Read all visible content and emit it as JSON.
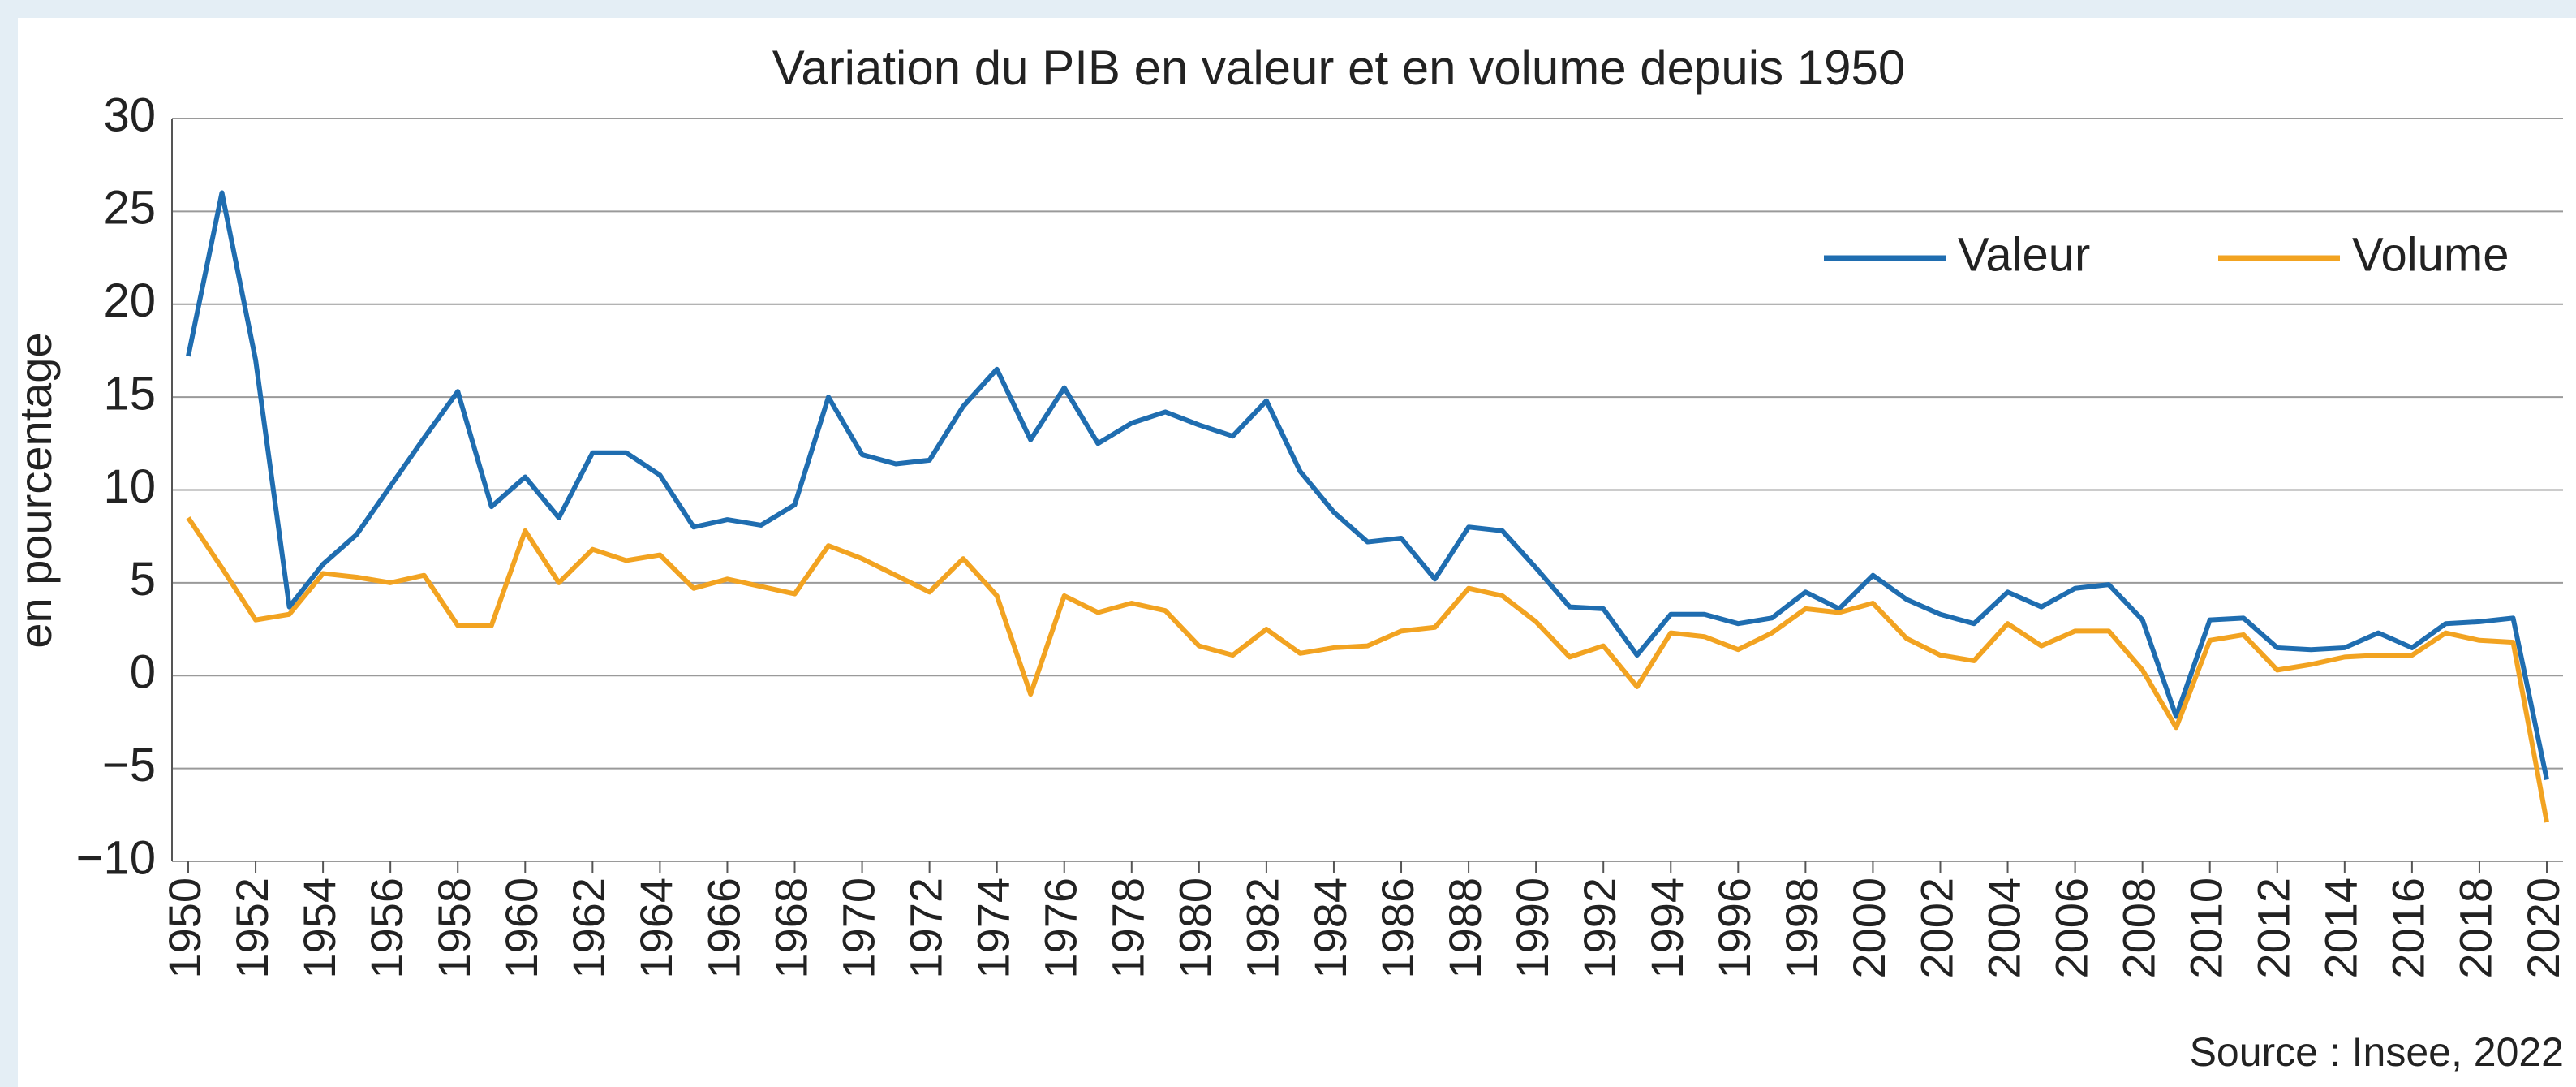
{
  "chart_data": {
    "type": "line",
    "title": "Variation du PIB en valeur et en volume depuis 1950",
    "y_label": "en pourcentage",
    "source": "Source : Insee, 2022",
    "x": [
      1950,
      1951,
      1952,
      1953,
      1954,
      1955,
      1956,
      1957,
      1958,
      1959,
      1960,
      1961,
      1962,
      1963,
      1964,
      1965,
      1966,
      1967,
      1968,
      1969,
      1970,
      1971,
      1972,
      1973,
      1974,
      1975,
      1976,
      1977,
      1978,
      1979,
      1980,
      1981,
      1982,
      1983,
      1984,
      1985,
      1986,
      1987,
      1988,
      1989,
      1990,
      1991,
      1992,
      1993,
      1994,
      1995,
      1996,
      1997,
      1998,
      1999,
      2000,
      2001,
      2002,
      2003,
      2004,
      2005,
      2006,
      2007,
      2008,
      2009,
      2010,
      2011,
      2012,
      2013,
      2014,
      2015,
      2016,
      2017,
      2018,
      2019,
      2020
    ],
    "series": [
      {
        "name": "Valeur",
        "color": "#1f6db0",
        "values": [
          17.2,
          26,
          17,
          3.7,
          6,
          7.6,
          10.2,
          12.8,
          15.3,
          9.1,
          10.7,
          8.5,
          12,
          12,
          10.8,
          8,
          8.4,
          8.1,
          9.2,
          15,
          11.9,
          11.4,
          11.6,
          14.5,
          16.5,
          12.7,
          15.5,
          12.5,
          13.6,
          14.2,
          13.5,
          12.9,
          14.8,
          11,
          8.8,
          7.2,
          7.4,
          5.2,
          8,
          7.8,
          5.8,
          3.7,
          3.6,
          1.1,
          3.3,
          3.3,
          2.8,
          3.1,
          4.5,
          3.6,
          5.4,
          4.1,
          3.3,
          2.8,
          4.5,
          3.7,
          4.7,
          4.9,
          3,
          -2.2,
          3,
          3.1,
          1.5,
          1.4,
          1.5,
          2.3,
          1.5,
          2.8,
          2.9,
          3.1,
          -5.6
        ]
      },
      {
        "name": "Volume",
        "color": "#f2a321",
        "values": [
          8.5,
          5.8,
          3,
          3.3,
          5.5,
          5.3,
          5,
          5.4,
          2.7,
          2.7,
          7.8,
          5,
          6.8,
          6.2,
          6.5,
          4.7,
          5.2,
          4.8,
          4.4,
          7,
          6.3,
          5.4,
          4.5,
          6.3,
          4.3,
          -1,
          4.3,
          3.4,
          3.9,
          3.5,
          1.6,
          1.1,
          2.5,
          1.2,
          1.5,
          1.6,
          2.4,
          2.6,
          4.7,
          4.3,
          2.9,
          1,
          1.6,
          -0.6,
          2.3,
          2.1,
          1.4,
          2.3,
          3.6,
          3.4,
          3.9,
          2,
          1.1,
          0.8,
          2.8,
          1.6,
          2.4,
          2.4,
          0.3,
          -2.8,
          1.9,
          2.2,
          0.3,
          0.6,
          1,
          1.1,
          1.1,
          2.3,
          1.9,
          1.8,
          -7.9
        ]
      }
    ],
    "xlim": [
      1950,
      2020
    ],
    "xticks": [
      1950,
      1952,
      1954,
      1956,
      1958,
      1960,
      1962,
      1964,
      1966,
      1968,
      1970,
      1972,
      1974,
      1976,
      1978,
      1980,
      1982,
      1984,
      1986,
      1988,
      1990,
      1992,
      1994,
      1996,
      1998,
      2000,
      2002,
      2004,
      2006,
      2008,
      2010,
      2012,
      2014,
      2016,
      2018,
      2020
    ],
    "ylim": [
      -10,
      30
    ],
    "yticks": [
      {
        "value": -10,
        "label": "−10"
      },
      {
        "value": -5,
        "label": "−5"
      },
      0,
      5,
      10,
      15,
      20,
      25,
      30
    ],
    "grid": true,
    "legend": "upper right"
  }
}
